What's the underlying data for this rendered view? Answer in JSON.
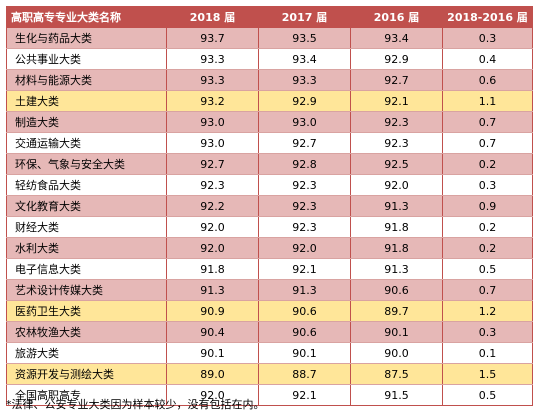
{
  "table": {
    "headers": [
      "高职高专专业大类名称",
      "2018 届",
      "2017 届",
      "2016 届",
      "2018-2016 届"
    ],
    "rows": [
      {
        "name": "生化与药品大类",
        "v2018": "93.7",
        "v2017": "93.5",
        "v2016": "93.4",
        "diff": "0.3",
        "style": "pink"
      },
      {
        "name": "公共事业大类",
        "v2018": "93.3",
        "v2017": "93.4",
        "v2016": "92.9",
        "diff": "0.4",
        "style": "white"
      },
      {
        "name": "材料与能源大类",
        "v2018": "93.3",
        "v2017": "93.3",
        "v2016": "92.7",
        "diff": "0.6",
        "style": "pink"
      },
      {
        "name": "土建大类",
        "v2018": "93.2",
        "v2017": "92.9",
        "v2016": "92.1",
        "diff": "1.1",
        "style": "yellow"
      },
      {
        "name": "制造大类",
        "v2018": "93.0",
        "v2017": "93.0",
        "v2016": "92.3",
        "diff": "0.7",
        "style": "pink"
      },
      {
        "name": "交通运输大类",
        "v2018": "93.0",
        "v2017": "92.7",
        "v2016": "92.3",
        "diff": "0.7",
        "style": "white"
      },
      {
        "name": "环保、气象与安全大类",
        "v2018": "92.7",
        "v2017": "92.8",
        "v2016": "92.5",
        "diff": "0.2",
        "style": "pink"
      },
      {
        "name": "轻纺食品大类",
        "v2018": "92.3",
        "v2017": "92.3",
        "v2016": "92.0",
        "diff": "0.3",
        "style": "white"
      },
      {
        "name": "文化教育大类",
        "v2018": "92.2",
        "v2017": "92.3",
        "v2016": "91.3",
        "diff": "0.9",
        "style": "pink"
      },
      {
        "name": "财经大类",
        "v2018": "92.0",
        "v2017": "92.3",
        "v2016": "91.8",
        "diff": "0.2",
        "style": "white"
      },
      {
        "name": "水利大类",
        "v2018": "92.0",
        "v2017": "92.0",
        "v2016": "91.8",
        "diff": "0.2",
        "style": "pink"
      },
      {
        "name": "电子信息大类",
        "v2018": "91.8",
        "v2017": "92.1",
        "v2016": "91.3",
        "diff": "0.5",
        "style": "white"
      },
      {
        "name": "艺术设计传媒大类",
        "v2018": "91.3",
        "v2017": "91.3",
        "v2016": "90.6",
        "diff": "0.7",
        "style": "pink"
      },
      {
        "name": "医药卫生大类",
        "v2018": "90.9",
        "v2017": "90.6",
        "v2016": "89.7",
        "diff": "1.2",
        "style": "yellow"
      },
      {
        "name": "农林牧渔大类",
        "v2018": "90.4",
        "v2017": "90.6",
        "v2016": "90.1",
        "diff": "0.3",
        "style": "pink"
      },
      {
        "name": "旅游大类",
        "v2018": "90.1",
        "v2017": "90.1",
        "v2016": "90.0",
        "diff": "0.1",
        "style": "white"
      },
      {
        "name": "资源开发与测绘大类",
        "v2018": "89.0",
        "v2017": "88.7",
        "v2016": "87.5",
        "diff": "1.5",
        "style": "yellow"
      },
      {
        "name": "全国高职高专",
        "v2018": "92.0",
        "v2017": "92.1",
        "v2016": "91.5",
        "diff": "0.5",
        "style": "white"
      }
    ]
  },
  "note": "*法律、公安专业大类因为样本较少，没有包括在内。",
  "colors": {
    "header": "#c0504d",
    "pink_row": "#e6b8b7",
    "yellow_row": "#ffe699",
    "white_row": "#ffffff"
  }
}
